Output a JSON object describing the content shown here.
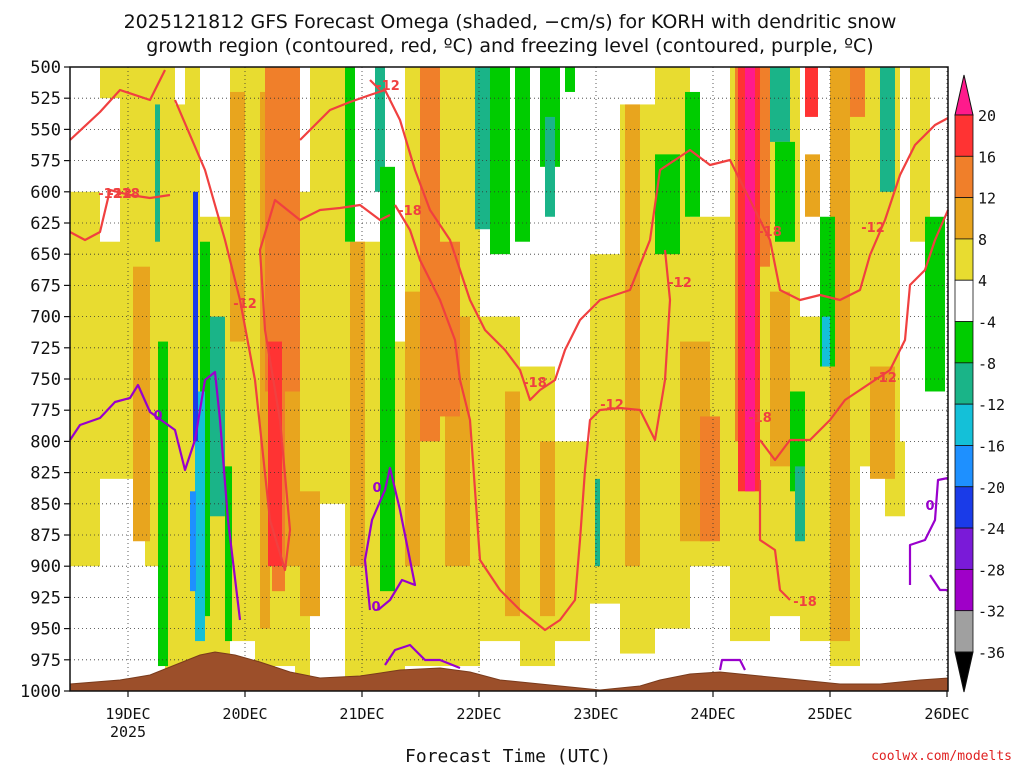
{
  "title_line1": "2025121812 GFS Forecast Omega (shaded, −cm/s) for KORH with dendritic snow",
  "title_line2": "growth region (contoured, red, ºC) and freezing level (contoured, purple, ºC)",
  "credit": "coolwx.com/modelts",
  "chart_data": {
    "type": "heatmap",
    "xlabel": "Forecast Time (UTC)",
    "x_ticks": [
      "19DEC",
      "20DEC",
      "21DEC",
      "22DEC",
      "23DEC",
      "24DEC",
      "25DEC",
      "26DEC"
    ],
    "x_year_label": "2025",
    "x_range": [
      "2025-12-18T12:00",
      "2025-12-26T00:00"
    ],
    "y_ticks": [
      500,
      525,
      550,
      575,
      600,
      625,
      650,
      675,
      700,
      725,
      750,
      775,
      800,
      825,
      850,
      875,
      900,
      925,
      950,
      975,
      1000
    ],
    "y_range": [
      1000,
      500
    ],
    "grid": true,
    "colorbar": {
      "labels": [
        20,
        16,
        12,
        8,
        4,
        -4,
        -8,
        -12,
        -16,
        -20,
        -24,
        -28,
        -32,
        -36
      ],
      "colors": [
        "#ff1a8c",
        "#ff3333",
        "#f07f2a",
        "#e8a51e",
        "#e8dc30",
        "#ffffff",
        "#00cc00",
        "#1ab488",
        "#14c0d8",
        "#1e90ff",
        "#1a3be8",
        "#7a1ad8",
        "#9f00c8",
        "#a0a0a0",
        "#000000"
      ]
    },
    "contour_labels_red": [
      "-18",
      "-12",
      "-18",
      "-12",
      "-18",
      "-18",
      "-12",
      "-12",
      "-12",
      "-18",
      "-12",
      "-18",
      "-12",
      "-12"
    ],
    "contour_labels_purple": [
      "0",
      "0",
      "0",
      "0"
    ]
  }
}
